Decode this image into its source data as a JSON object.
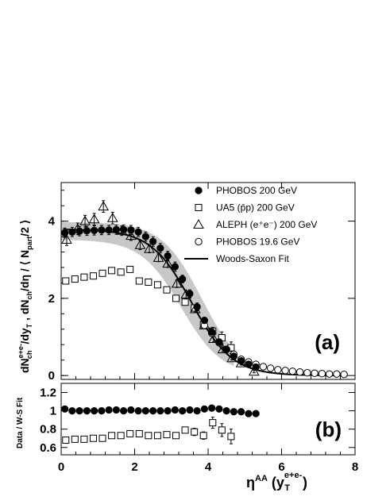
{
  "chart_data": [
    {
      "type": "scatter",
      "panel_label": "(a)",
      "ylabel": "dN^{e+e-}_{ch}/dy_T , dN_{ch}/dη / ⟨ N_{part}/2 ⟩",
      "xlabel": "η^{AA} (y^{e+e-}_T)",
      "xlim": [
        0,
        8
      ],
      "ylim": [
        -0.1,
        5
      ],
      "x_ticks": [
        0,
        2,
        4,
        6,
        8
      ],
      "y_ticks": [
        0,
        2,
        4
      ],
      "legend_position": "top-right",
      "legend": [
        {
          "marker": "filled-circle",
          "label": "PHOBOS 200 GeV"
        },
        {
          "marker": "open-square",
          "label": "UA5 (p̄p) 200 GeV"
        },
        {
          "marker": "open-triangle",
          "label": "ALEPH (e⁺e⁻) 200 GeV"
        },
        {
          "marker": "open-circle",
          "label": "PHOBOS 19.6 GeV"
        },
        {
          "marker": "line",
          "label": "Woods-Saxon Fit"
        }
      ],
      "series": [
        {
          "name": "PHOBOS 200 GeV",
          "marker": "filled-circle",
          "x": [
            0.1,
            0.3,
            0.5,
            0.7,
            0.9,
            1.1,
            1.3,
            1.5,
            1.7,
            1.9,
            2.1,
            2.3,
            2.5,
            2.7,
            2.9,
            3.1,
            3.3,
            3.5,
            3.7,
            3.9,
            4.1,
            4.3,
            4.5,
            4.7,
            4.9,
            5.1,
            5.3
          ],
          "y": [
            3.7,
            3.72,
            3.74,
            3.75,
            3.76,
            3.77,
            3.77,
            3.78,
            3.78,
            3.77,
            3.72,
            3.6,
            3.47,
            3.3,
            3.1,
            2.82,
            2.5,
            2.12,
            1.78,
            1.43,
            1.13,
            0.87,
            0.67,
            0.5,
            0.38,
            0.29,
            0.22
          ],
          "yerr": [
            0.12,
            0.12,
            0.12,
            0.12,
            0.12,
            0.12,
            0.12,
            0.12,
            0.12,
            0.12,
            0.12,
            0.12,
            0.12,
            0.12,
            0.12,
            0.12,
            0.1,
            0.1,
            0.1,
            0.08,
            0.08,
            0.07,
            0.06,
            0.05,
            0.04,
            0.03,
            0.03
          ]
        },
        {
          "name": "UA5 (p̄p) 200 GeV",
          "marker": "open-square",
          "x": [
            0.125,
            0.375,
            0.625,
            0.875,
            1.125,
            1.375,
            1.625,
            1.875,
            2.125,
            2.375,
            2.625,
            2.875,
            3.125,
            3.375,
            3.625,
            3.875,
            4.125,
            4.375,
            4.625
          ],
          "y": [
            2.45,
            2.5,
            2.55,
            2.58,
            2.65,
            2.72,
            2.68,
            2.75,
            2.45,
            2.42,
            2.35,
            2.22,
            2.0,
            1.9,
            1.75,
            1.32,
            1.15,
            0.98,
            0.72
          ],
          "yerr": [
            0.05,
            0.05,
            0.05,
            0.05,
            0.05,
            0.05,
            0.05,
            0.05,
            0.05,
            0.05,
            0.05,
            0.05,
            0.05,
            0.05,
            0.06,
            0.07,
            0.1,
            0.15,
            0.15
          ]
        },
        {
          "name": "ALEPH (e⁺e⁻) 200 GeV",
          "marker": "open-triangle",
          "x": [
            0.15,
            0.45,
            0.65,
            0.9,
            1.15,
            1.4,
            1.65,
            1.9,
            2.15,
            2.4,
            2.65,
            2.9,
            3.15,
            3.4,
            3.65,
            3.9,
            4.15,
            4.4,
            4.65,
            4.9,
            5.25
          ],
          "y": [
            3.52,
            3.8,
            4.0,
            4.05,
            4.38,
            4.08,
            3.75,
            3.62,
            3.38,
            3.28,
            3.05,
            2.9,
            2.38,
            2.1,
            1.72,
            1.3,
            0.95,
            0.68,
            0.45,
            0.32,
            0.1
          ],
          "yerr": [
            0.15,
            0.15,
            0.15,
            0.15,
            0.15,
            0.15,
            0.12,
            0.12,
            0.12,
            0.1,
            0.1,
            0.1,
            0.1,
            0.1,
            0.08,
            0.08,
            0.08,
            0.06,
            0.05,
            0.05,
            0.03
          ]
        },
        {
          "name": "PHOBOS 19.6 GeV",
          "marker": "open-circle",
          "x": [
            3.9,
            4.1,
            4.3,
            4.5,
            4.7,
            4.9,
            5.1,
            5.3,
            5.5,
            5.7,
            5.9,
            6.1,
            6.3,
            6.5,
            6.7,
            6.9,
            7.1,
            7.3,
            7.5,
            7.7
          ],
          "y": [
            1.3,
            1.1,
            0.85,
            0.68,
            0.55,
            0.42,
            0.35,
            0.29,
            0.23,
            0.19,
            0.15,
            0.13,
            0.11,
            0.09,
            0.07,
            0.06,
            0.05,
            0.04,
            0.04,
            0.03
          ]
        },
        {
          "name": "Woods-Saxon Fit",
          "marker": "line",
          "fit": {
            "A": 3.79,
            "x0": 3.55,
            "w": 0.55,
            "xmin": 0.05,
            "xmax": 7.8
          },
          "band": {
            "xmin": 0.0,
            "xmax": 4.7,
            "half_width_low_x": 0.45,
            "half_width_high_x": 0.6
          }
        }
      ]
    },
    {
      "type": "scatter",
      "panel_label": "(b)",
      "ylabel": "Data / W-S Fit",
      "xlim": [
        0,
        8
      ],
      "ylim": [
        0.52,
        1.3
      ],
      "y_ticks": [
        0.6,
        0.8,
        1,
        1.2
      ],
      "y_tick_labels": [
        "0.6",
        "0.8",
        "1",
        "1.2"
      ],
      "series": [
        {
          "name": "PHOBOS 200 GeV",
          "marker": "filled-circle",
          "x": [
            0.1,
            0.3,
            0.5,
            0.7,
            0.9,
            1.1,
            1.3,
            1.5,
            1.7,
            1.9,
            2.1,
            2.3,
            2.5,
            2.7,
            2.9,
            3.1,
            3.3,
            3.5,
            3.7,
            3.9,
            4.1,
            4.3,
            4.5,
            4.7,
            4.9,
            5.1,
            5.3
          ],
          "y": [
            1.02,
            1.0,
            1.0,
            1.0,
            1.0,
            1.0,
            1.01,
            1.01,
            1.0,
            1.01,
            1.0,
            1.0,
            1.0,
            1.0,
            1.0,
            1.01,
            1.0,
            1.01,
            1.0,
            1.02,
            1.03,
            1.02,
            1.0,
            0.99,
            0.99,
            0.97,
            0.97
          ]
        },
        {
          "name": "UA5 (p̄p) 200 GeV",
          "marker": "open-square",
          "x": [
            0.125,
            0.375,
            0.625,
            0.875,
            1.125,
            1.375,
            1.625,
            1.875,
            2.125,
            2.375,
            2.625,
            2.875,
            3.125,
            3.375,
            3.625,
            3.875,
            4.125,
            4.375,
            4.625
          ],
          "y": [
            0.68,
            0.69,
            0.69,
            0.7,
            0.7,
            0.73,
            0.73,
            0.75,
            0.75,
            0.73,
            0.73,
            0.74,
            0.73,
            0.79,
            0.77,
            0.73,
            0.87,
            0.79,
            0.72
          ],
          "yerr": [
            0.02,
            0.02,
            0.02,
            0.02,
            0.02,
            0.02,
            0.02,
            0.02,
            0.02,
            0.02,
            0.02,
            0.02,
            0.03,
            0.03,
            0.04,
            0.04,
            0.06,
            0.07,
            0.08
          ]
        }
      ]
    }
  ]
}
